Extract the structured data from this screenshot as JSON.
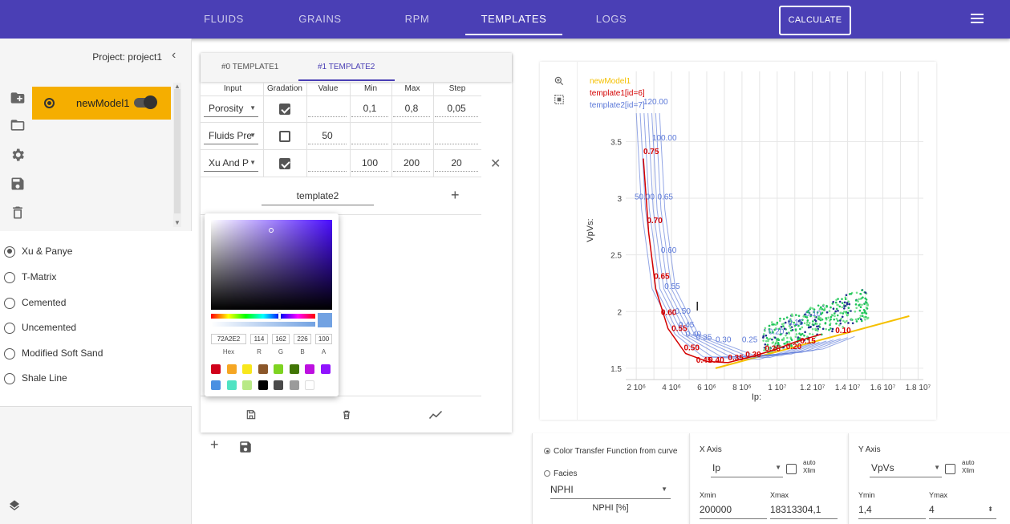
{
  "nav": {
    "tabs": [
      "FLUIDS",
      "GRAINS",
      "RPM",
      "TEMPLATES",
      "LOGS"
    ],
    "active_tab": "TEMPLATES",
    "calculate": "CALCULATE"
  },
  "sidebar": {
    "project_title": "Project: project1",
    "model": {
      "name": "newModel1",
      "toggle_on": true
    },
    "models": [
      {
        "label": "Xu & Panye",
        "selected": true
      },
      {
        "label": "T-Matrix",
        "selected": false
      },
      {
        "label": "Cemented",
        "selected": false
      },
      {
        "label": "Uncemented",
        "selected": false
      },
      {
        "label": "Modified Soft Sand",
        "selected": false
      },
      {
        "label": "Shale Line",
        "selected": false
      }
    ]
  },
  "template_panel": {
    "tabs": [
      "#0 TEMPLATE1",
      "#1 TEMPLATE2"
    ],
    "active_tab": "#1 TEMPLATE2",
    "columns": [
      "Input",
      "Gradation",
      "Value",
      "Min",
      "Max",
      "Step"
    ],
    "rows": [
      {
        "input": "Porosity",
        "gradation": true,
        "value": "",
        "min": "0,1",
        "max": "0,8",
        "step": "0,05"
      },
      {
        "input": "Fluids Pre",
        "gradation": false,
        "value": "50",
        "min": "",
        "max": "",
        "step": ""
      },
      {
        "input": "Xu And P",
        "gradation": true,
        "value": "",
        "min": "100",
        "max": "200",
        "step": "20"
      }
    ],
    "template_name": "template2"
  },
  "color_picker": {
    "hex": "72A2E2",
    "r": "114",
    "g": "162",
    "b": "226",
    "a": "100",
    "labels": {
      "hex": "Hex",
      "r": "R",
      "g": "G",
      "b": "B",
      "a": "A"
    },
    "swatches": [
      "#D0021B",
      "#F5A623",
      "#F8E71C",
      "#8B572A",
      "#7ED321",
      "#417505",
      "#BD10E0",
      "#9013FE",
      "#4A90E2",
      "#50E3C2",
      "#B8E986",
      "#000000",
      "#4A4A4A",
      "#9B9B9B",
      "#FFFFFF"
    ]
  },
  "chart_data": {
    "type": "scatter",
    "xlabel": "Ip:",
    "ylabel": "VpVs:",
    "xlim": [
      1400000,
      18300000
    ],
    "ylim": [
      1.4,
      3.8
    ],
    "x_ticks": [
      "2 10⁶",
      "4 10⁶",
      "6 10⁶",
      "8 10⁶",
      "1 10⁷",
      "1.2 10⁷",
      "1.4 10⁷",
      "1.6 10⁷",
      "1.8 10⁷"
    ],
    "y_ticks": [
      "1.5",
      "2",
      "2.5",
      "3",
      "3.5"
    ],
    "legend": [
      "newModel1",
      "template1[id=6]",
      "template2[id=7]"
    ],
    "colors": {
      "newModel1": "#f5c000",
      "template1": "#d40000",
      "template2": "#5b78d8"
    },
    "template1_labels": [
      "0.75",
      "0.70",
      "0.65",
      "0.60",
      "0.55",
      "0.50",
      "0.45",
      "0.40",
      "0.35",
      "0.30",
      "0.25",
      "0.20",
      "0.15",
      "0.10"
    ],
    "template2_labels": [
      "120.00",
      "100.00",
      "0.65",
      "0.60",
      "0.55",
      "0.50",
      "0.45",
      "0.40",
      "0.35",
      "0.30",
      "0.25",
      "0.20",
      "0.15",
      "0.10"
    ],
    "template1_curve": [
      [
        2400000,
        3.35
      ],
      [
        2700000,
        2.7
      ],
      [
        3100000,
        2.2
      ],
      [
        3800000,
        1.85
      ],
      [
        4800000,
        1.63
      ],
      [
        6000000,
        1.56
      ],
      [
        7200000,
        1.55
      ],
      [
        8500000,
        1.6
      ],
      [
        9800000,
        1.66
      ],
      [
        11000000,
        1.73
      ],
      [
        12500000,
        1.8
      ]
    ],
    "template2_extra": [
      "50.00"
    ],
    "shale_line": [
      [
        6500000,
        1.5
      ],
      [
        17500000,
        1.96
      ]
    ]
  },
  "controls": {
    "color_transfer_label": "Color Transfer Function from curve",
    "facies_label": "Facies",
    "curve_select": "NPHI",
    "curve_unit": "NPHI [%]",
    "x_axis": {
      "title": "X Axis",
      "value": "Ip",
      "auto": "auto",
      "xlim": "Xlim",
      "min_label": "Xmin",
      "max_label": "Xmax",
      "min": "200000",
      "max": "18313304,1"
    },
    "y_axis": {
      "title": "Y Axis",
      "value": "VpVs",
      "auto": "auto",
      "xlim": "Xlim",
      "min_label": "Ymin",
      "max_label": "Ymax",
      "min": "1,4",
      "max": "4"
    }
  }
}
